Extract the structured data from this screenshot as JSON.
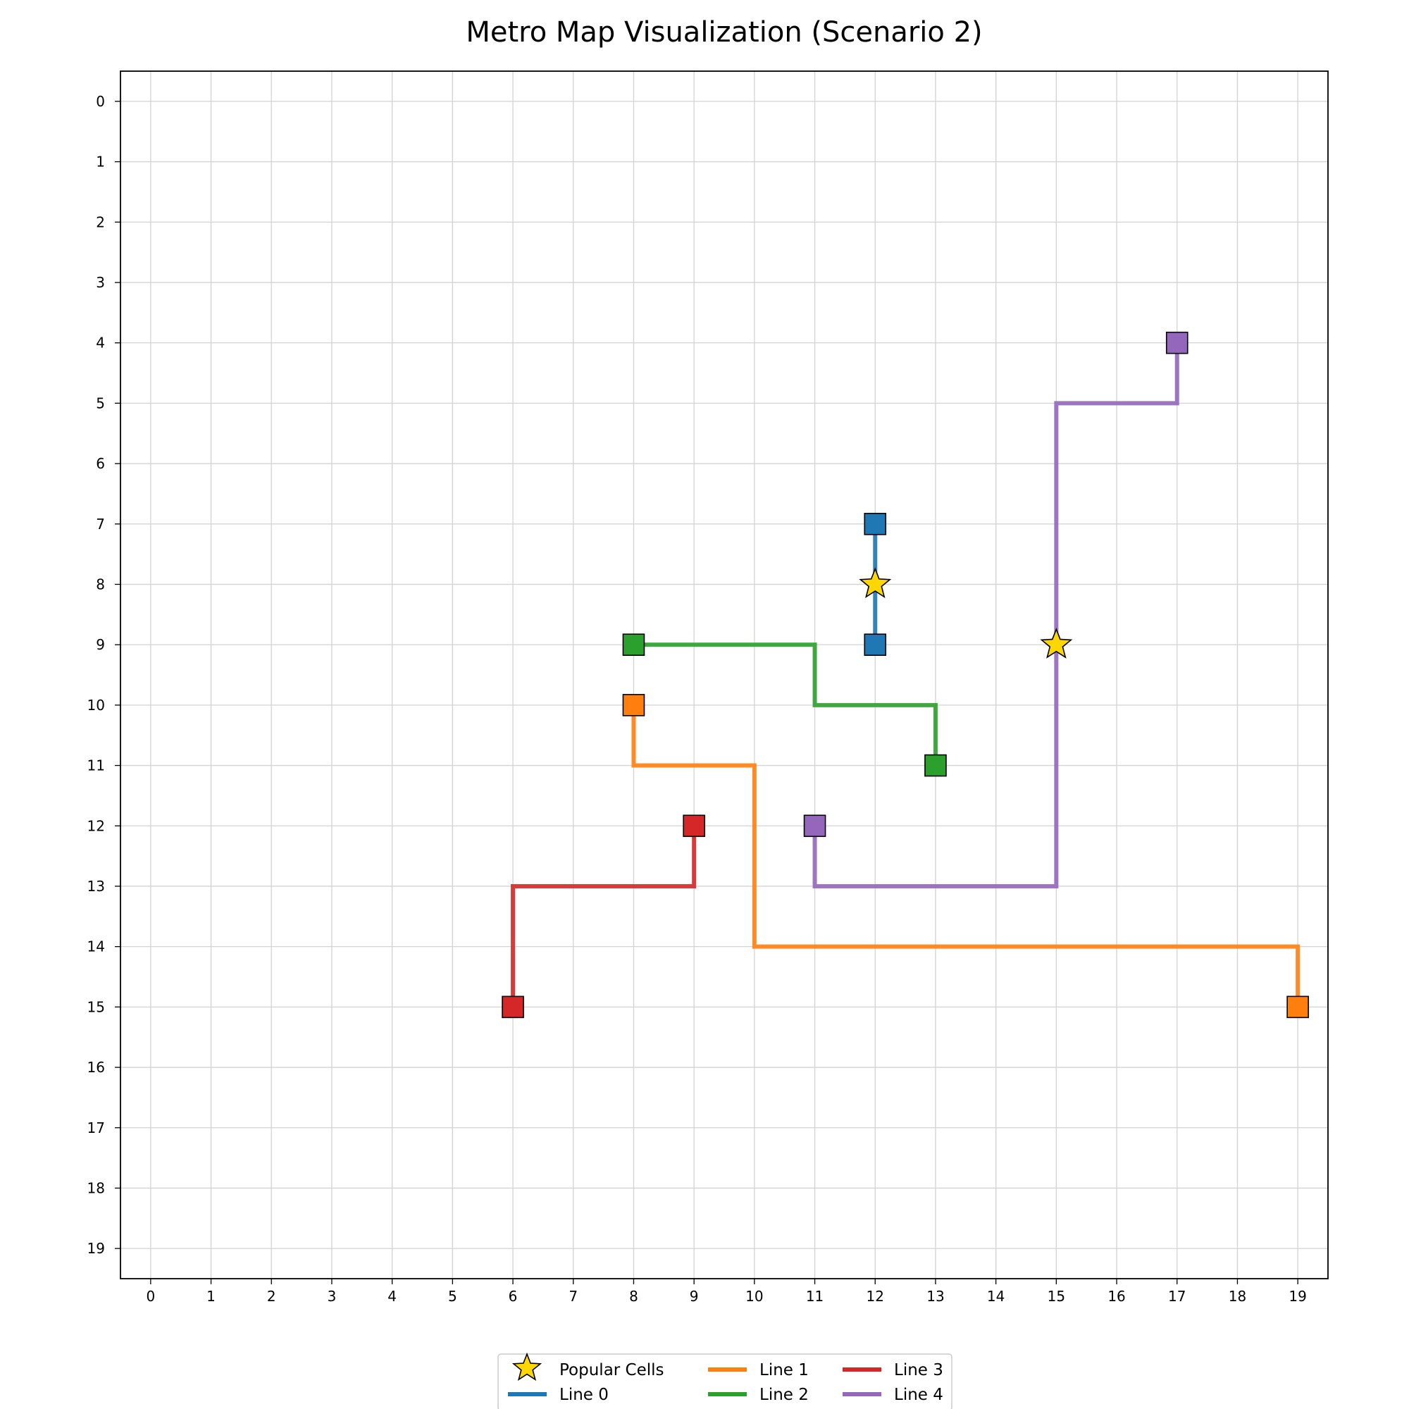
{
  "chart_data": {
    "type": "line",
    "title": "Metro Map Visualization (Scenario 2)",
    "xlabel": "",
    "ylabel": "",
    "xlim": [
      -0.5,
      19.5
    ],
    "ylim": [
      19.5,
      -0.5
    ],
    "y_inverted": true,
    "x_ticks": [
      "0",
      "1",
      "2",
      "3",
      "4",
      "5",
      "6",
      "7",
      "8",
      "9",
      "10",
      "11",
      "12",
      "13",
      "14",
      "15",
      "16",
      "17",
      "18",
      "19"
    ],
    "y_ticks": [
      "0",
      "1",
      "2",
      "3",
      "4",
      "5",
      "6",
      "7",
      "8",
      "9",
      "10",
      "11",
      "12",
      "13",
      "14",
      "15",
      "16",
      "17",
      "18",
      "19"
    ],
    "grid": true,
    "legend_position": "bottom-center",
    "legend_columns": 3,
    "popular_cells": {
      "name": "Popular Cells",
      "color": "#ffd700",
      "points": [
        [
          12,
          8
        ],
        [
          15,
          9
        ]
      ]
    },
    "series": [
      {
        "name": "Line 0",
        "color": "#1f77b4",
        "path": [
          [
            12,
            7
          ],
          [
            12,
            9
          ]
        ]
      },
      {
        "name": "Line 1",
        "color": "#ff7f0e",
        "path": [
          [
            8,
            10
          ],
          [
            8,
            11
          ],
          [
            10,
            11
          ],
          [
            10,
            14
          ],
          [
            19,
            14
          ],
          [
            19,
            15
          ]
        ]
      },
      {
        "name": "Line 2",
        "color": "#2ca02c",
        "path": [
          [
            8,
            9
          ],
          [
            11,
            9
          ],
          [
            11,
            10
          ],
          [
            13,
            10
          ],
          [
            13,
            11
          ]
        ]
      },
      {
        "name": "Line 3",
        "color": "#d62728",
        "path": [
          [
            9,
            12
          ],
          [
            9,
            13
          ],
          [
            6,
            13
          ],
          [
            6,
            15
          ]
        ]
      },
      {
        "name": "Line 4",
        "color": "#9467bd",
        "path": [
          [
            17,
            4
          ],
          [
            17,
            5
          ],
          [
            15,
            5
          ],
          [
            15,
            13
          ],
          [
            11,
            13
          ],
          [
            11,
            12
          ]
        ]
      }
    ],
    "legend": [
      {
        "label": "Popular Cells",
        "kind": "star",
        "color": "#ffd700"
      },
      {
        "label": "Line 0",
        "kind": "line",
        "color": "#1f77b4"
      },
      {
        "label": "Line 1",
        "kind": "line",
        "color": "#ff7f0e"
      },
      {
        "label": "Line 2",
        "kind": "line",
        "color": "#2ca02c"
      },
      {
        "label": "Line 3",
        "kind": "line",
        "color": "#d62728"
      },
      {
        "label": "Line 4",
        "kind": "line",
        "color": "#9467bd"
      }
    ]
  }
}
